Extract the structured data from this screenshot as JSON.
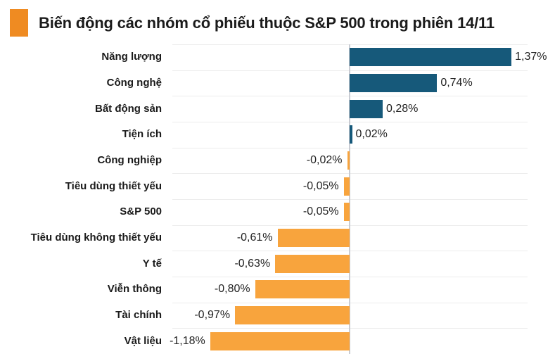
{
  "header": {
    "title": "Biến động các nhóm cổ phiếu thuộc S&P 500 trong phiên 14/11",
    "accent_color": "#ef8b22"
  },
  "chart_data": {
    "type": "bar",
    "orientation": "horizontal",
    "title": "Biến động các nhóm cổ phiếu thuộc S&P 500 trong phiên 14/11",
    "categories": [
      "Năng lượng",
      "Công nghệ",
      "Bất động sản",
      "Tiện ích",
      "Công nghiệp",
      "Tiêu dùng thiết yếu",
      "S&P 500",
      "Tiêu dùng không thiết yếu",
      "Y tế",
      "Viễn thông",
      "Tài chính",
      "Vật liệu"
    ],
    "values": [
      1.37,
      0.74,
      0.28,
      0.02,
      -0.02,
      -0.05,
      -0.05,
      -0.61,
      -0.63,
      -0.8,
      -0.97,
      -1.18
    ],
    "value_labels": [
      "1,37%",
      "0,74%",
      "0,28%",
      "0,02%",
      "-0,02%",
      "-0,05%",
      "-0,05%",
      "-0,61%",
      "-0,63%",
      "-0,80%",
      "-0,97%",
      "-1,18%"
    ],
    "unit": "%",
    "decimal_separator": ",",
    "baseline_value": 0,
    "xlim": [
      -1.5,
      1.5
    ],
    "grid": true,
    "legend": "none",
    "colors": {
      "positive_bar": "#16597a",
      "negative_bar": "#f8a43d"
    }
  }
}
